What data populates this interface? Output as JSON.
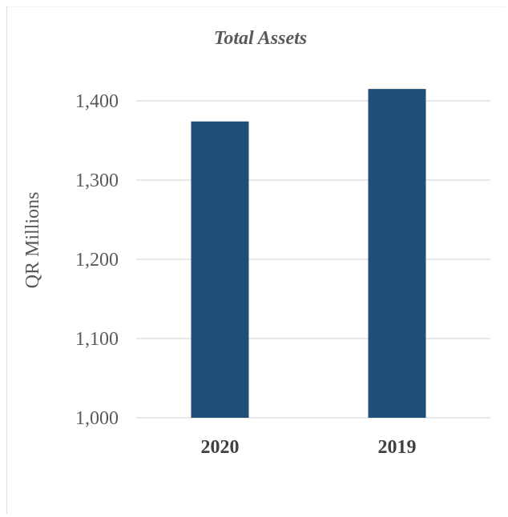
{
  "chart_data": {
    "type": "bar",
    "title": "Total Assets",
    "ylabel": "QR Millions",
    "xlabel": "",
    "categories": [
      "2020",
      "2019"
    ],
    "values": [
      1374,
      1415
    ],
    "ylim": [
      1000,
      1400
    ],
    "yticks": [
      1000,
      1100,
      1200,
      1300,
      1400
    ],
    "ytick_labels": [
      "1,000",
      "1,100",
      "1,200",
      "1,300",
      "1,400"
    ],
    "grid": true,
    "legend": "none",
    "bar_color": "#1f4e79"
  }
}
